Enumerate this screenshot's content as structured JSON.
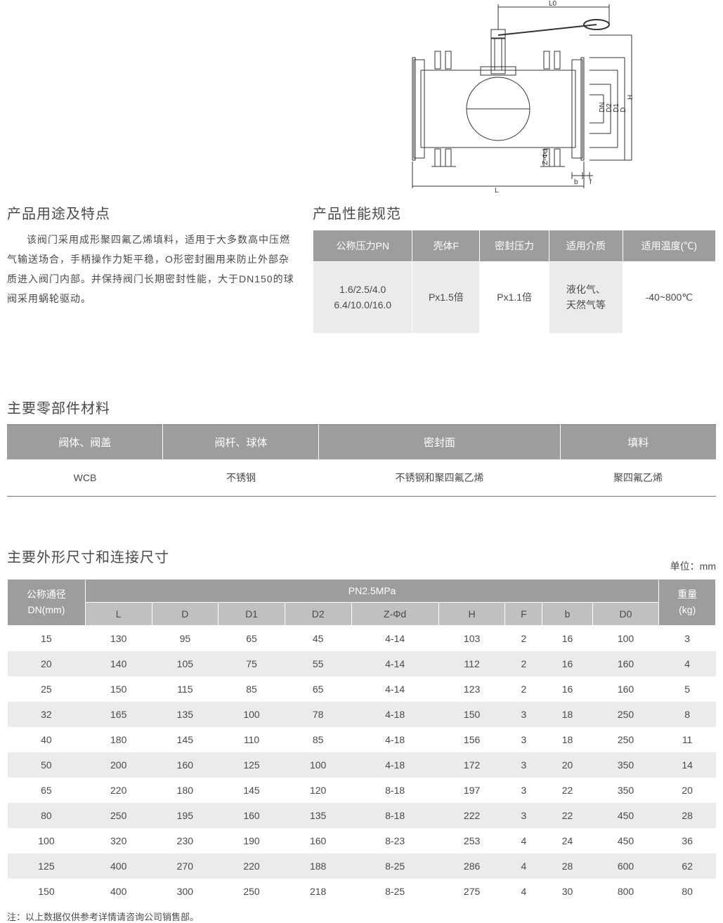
{
  "diagram": {
    "labels": [
      "L0",
      "H",
      "D",
      "D1",
      "D2",
      "DN",
      "Z-Φd",
      "b",
      "f",
      "L"
    ]
  },
  "features": {
    "title": "产品用途及特点",
    "text": "该阀门采用成形聚四氟乙烯填料，适用于大多数高中压燃气输送场合，手柄操作力矩平稳，O形密封圈用来防止外部杂质进入阀门内部。并保持阀门长期密封性能，大于DN150的球阀采用蜗轮驱动。"
  },
  "performance": {
    "title": "产品性能规范",
    "headers": [
      "公称压力PN",
      "壳体F",
      "密封压力",
      "适用介质",
      "适用温度(℃)"
    ],
    "row": [
      "1.6/2.5/4.0\n6.4/10.0/16.0",
      "Px1.5倍",
      "Px1.1倍",
      "液化气、\n天然气等",
      "-40~800℃"
    ]
  },
  "materials": {
    "title": "主要零部件材料",
    "headers": [
      "阀体、阀盖",
      "阀杆、球体",
      "密封面",
      "填料"
    ],
    "row": [
      "WCB",
      "不锈钢",
      "不锈钢和聚四氟乙烯",
      "聚四氟乙烯"
    ],
    "col_widths": [
      "22%",
      "22%",
      "34%",
      "22%"
    ]
  },
  "dimensions": {
    "title": "主要外形尺寸和连接尺寸",
    "unit": "单位：mm",
    "group_header": "PN2.5MPa",
    "corner_header": "公称通径\nDN(mm)",
    "weight_header": "重量\n(kg)",
    "sub_headers": [
      "L",
      "D",
      "D1",
      "D2",
      "Z-Φd",
      "H",
      "F",
      "b",
      "D0"
    ],
    "rows": [
      [
        "15",
        "130",
        "95",
        "65",
        "45",
        "4-14",
        "103",
        "2",
        "16",
        "100",
        "3"
      ],
      [
        "20",
        "140",
        "105",
        "75",
        "55",
        "4-14",
        "112",
        "2",
        "16",
        "160",
        "4"
      ],
      [
        "25",
        "150",
        "115",
        "85",
        "65",
        "4-14",
        "123",
        "2",
        "16",
        "160",
        "5"
      ],
      [
        "32",
        "165",
        "135",
        "100",
        "78",
        "4-18",
        "150",
        "3",
        "18",
        "250",
        "8"
      ],
      [
        "40",
        "180",
        "145",
        "110",
        "85",
        "4-18",
        "156",
        "3",
        "18",
        "250",
        "11"
      ],
      [
        "50",
        "200",
        "160",
        "125",
        "100",
        "4-18",
        "172",
        "3",
        "20",
        "350",
        "14"
      ],
      [
        "65",
        "220",
        "180",
        "145",
        "120",
        "8-18",
        "197",
        "3",
        "22",
        "350",
        "20"
      ],
      [
        "80",
        "250",
        "195",
        "160",
        "135",
        "8-18",
        "222",
        "3",
        "22",
        "450",
        "28"
      ],
      [
        "100",
        "320",
        "230",
        "190",
        "160",
        "8-23",
        "253",
        "4",
        "24",
        "450",
        "36"
      ],
      [
        "125",
        "400",
        "270",
        "220",
        "188",
        "8-25",
        "286",
        "4",
        "28",
        "600",
        "62"
      ],
      [
        "150",
        "400",
        "300",
        "250",
        "218",
        "8-25",
        "275",
        "4",
        "30",
        "800",
        "80"
      ]
    ]
  },
  "footnote": "注：以上数据仅供参考详情请咨询公司销售部。"
}
